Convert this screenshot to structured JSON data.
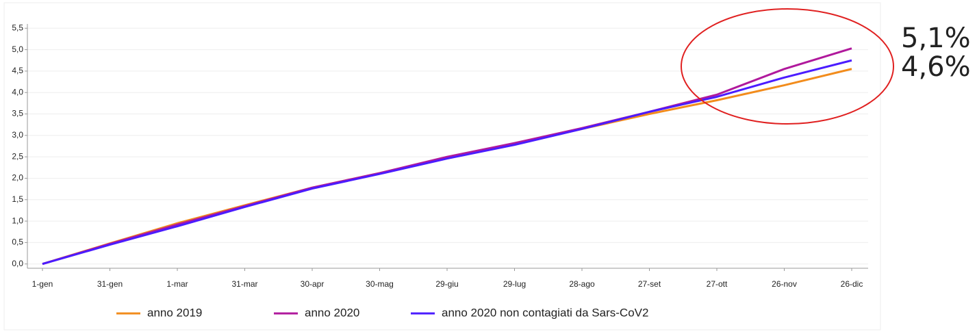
{
  "chart_data": {
    "type": "line",
    "categories": [
      "1-gen",
      "31-gen",
      "1-mar",
      "31-mar",
      "30-apr",
      "30-mag",
      "29-giu",
      "29-lug",
      "28-ago",
      "27-set",
      "27-ott",
      "26-nov",
      "26-dic"
    ],
    "series": [
      {
        "name": "anno 2019",
        "color": "#f28c1c",
        "values": [
          0,
          0.48,
          0.95,
          1.37,
          1.78,
          2.12,
          2.48,
          2.8,
          3.15,
          3.5,
          3.82,
          4.17,
          4.55
        ]
      },
      {
        "name": "anno 2020",
        "color": "#b0199c",
        "values": [
          0,
          0.47,
          0.92,
          1.35,
          1.78,
          2.12,
          2.5,
          2.82,
          3.17,
          3.55,
          3.95,
          4.55,
          5.03
        ]
      },
      {
        "name": "anno 2020 non contagiati da Sars-CoV2",
        "color": "#4b1cff",
        "values": [
          0,
          0.45,
          0.88,
          1.33,
          1.76,
          2.1,
          2.46,
          2.78,
          3.15,
          3.55,
          3.9,
          4.35,
          4.75
        ]
      }
    ],
    "ylim": [
      -0.1,
      5.6
    ],
    "yticks": [
      {
        "value": 0,
        "label": "0,0"
      },
      {
        "value": 0.5,
        "label": "0,5"
      },
      {
        "value": 1,
        "label": "1,0"
      },
      {
        "value": 1.5,
        "label": "1,5"
      },
      {
        "value": 2,
        "label": "2,0"
      },
      {
        "value": 2.5,
        "label": "2,5"
      },
      {
        "value": 3,
        "label": "3,0"
      },
      {
        "value": 3.5,
        "label": "3,5"
      },
      {
        "value": 4,
        "label": "4,0"
      },
      {
        "value": 4.5,
        "label": "4,5"
      },
      {
        "value": 5,
        "label": "5,0"
      },
      {
        "value": 5.5,
        "label": "5,5"
      }
    ],
    "grid": true,
    "legend": "bottom",
    "annotations": [
      "5,1%",
      "4,6%"
    ]
  }
}
